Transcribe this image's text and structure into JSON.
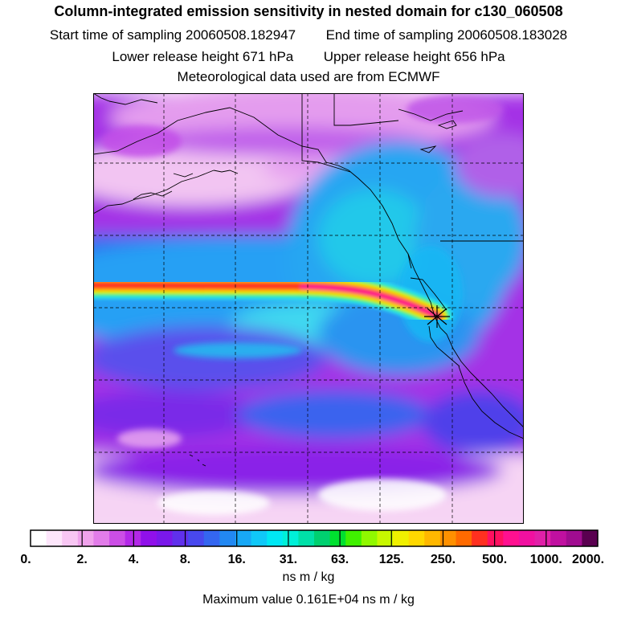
{
  "title": "Column-integrated emission sensitivity in nested domain for c130_060508",
  "sampling": {
    "start_label": "Start time of sampling",
    "start_value": "20060508.182947",
    "end_label": "End time of sampling",
    "end_value": "20060508.183028"
  },
  "release": {
    "lower_label": "Lower release height",
    "lower_value": "671 hPa",
    "upper_label": "Upper release height",
    "upper_value": "656 hPa"
  },
  "met_note": "Meteorological data used are from ECMWF",
  "colorbar": {
    "tick_labels": [
      "0.",
      "2.",
      "4.",
      "8.",
      "16.",
      "31.",
      "63.",
      "125.",
      "250.",
      "500.",
      "1000.",
      "2000."
    ],
    "colors": [
      "#ffffff",
      "#fde6fb",
      "#f8c6f3",
      "#f0a2ec",
      "#e27ce9",
      "#cc4ee6",
      "#b328e8",
      "#9010ea",
      "#7a18ea",
      "#6030ec",
      "#4848ee",
      "#3466f0",
      "#2288f2",
      "#18a8f6",
      "#10c8f8",
      "#00e8f4",
      "#00f0d8",
      "#00e0a8",
      "#00d070",
      "#00e030",
      "#40f000",
      "#90f800",
      "#c8f800",
      "#f0f000",
      "#ffd800",
      "#ffb800",
      "#ff9000",
      "#ff6a00",
      "#ff3020",
      "#ff1060",
      "#ff1090",
      "#f010a0",
      "#e020a8",
      "#c010a0",
      "#a00c90",
      "#5a0050"
    ],
    "unit": "ns m / kg"
  },
  "max_value_text": "Maximum value  0.161E+04 ns m / kg",
  "colors": {
    "background_field": "#a030e8",
    "plume_core": "#ff1080",
    "coast": "#000000"
  }
}
